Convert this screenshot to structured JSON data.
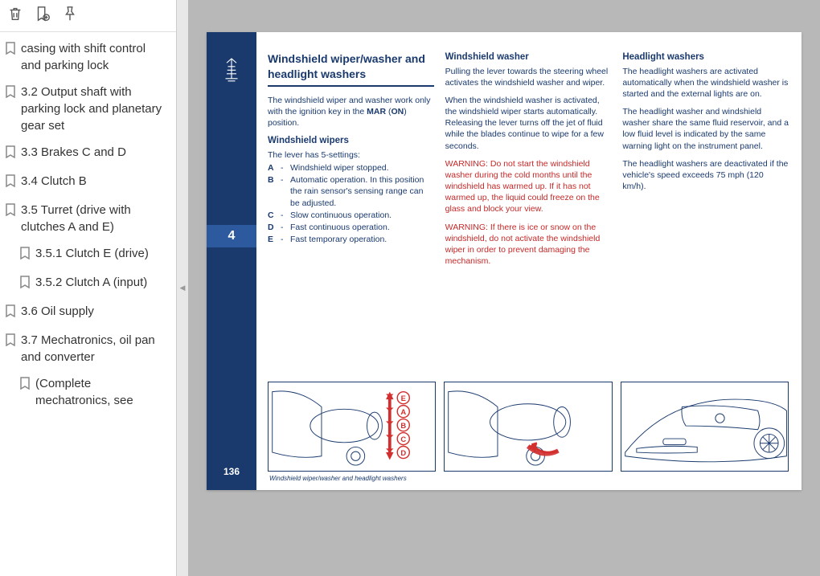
{
  "toolbar": {
    "icons": [
      "trash-icon",
      "bookmark-add-icon",
      "highlight-icon"
    ]
  },
  "outline": [
    {
      "label": "casing with shift control and parking lock",
      "nested": false
    },
    {
      "label": "3.2 Output shaft with parking lock and planetary gear set",
      "nested": false
    },
    {
      "label": "3.3 Brakes C and D",
      "nested": false
    },
    {
      "label": "3.4 Clutch B",
      "nested": false
    },
    {
      "label": "3.5 Turret (drive with clutches A and E)",
      "nested": false
    },
    {
      "label": "3.5.1 Clutch E (drive)",
      "nested": true
    },
    {
      "label": "3.5.2 Clutch A (input)",
      "nested": true
    },
    {
      "label": "3.6 Oil supply",
      "nested": false
    },
    {
      "label": "3.7 Mechatronics, oil pan and converter",
      "nested": false
    },
    {
      "label": "  (Complete mechatronics, see",
      "nested": true
    }
  ],
  "page": {
    "chapter": "4",
    "page_number": "136",
    "caption": "Windshield wiper/washer and headlight washers",
    "col1": {
      "title": "Windshield wiper/washer and headlight washers",
      "intro_a": "The windshield wiper and washer work only with the ignition key in the ",
      "intro_b": "MAR",
      "intro_c": " (",
      "intro_d": "ON",
      "intro_e": ") position.",
      "sub": "Windshield wipers",
      "lever_intro": "The lever has 5-settings:",
      "settings": [
        {
          "k": "A",
          "v": "Windshield wiper stopped."
        },
        {
          "k": "B",
          "v": "Automatic operation. In this position the rain sensor's sensing range can be adjusted."
        },
        {
          "k": "C",
          "v": "Slow continuous operation."
        },
        {
          "k": "D",
          "v": "Fast continuous operation."
        },
        {
          "k": "E",
          "v": "Fast temporary operation."
        }
      ]
    },
    "col2": {
      "title": "Windshield washer",
      "p1": "Pulling the lever towards the steering wheel activates the windshield washer and wiper.",
      "p2": "When the windshield washer is activated, the windshield wiper starts automatically. Releasing the lever turns off the jet of fluid while the blades continue to wipe for a few seconds.",
      "w1": "WARNING: Do not start the windshield washer during the cold months until the windshield has warmed up. If it has not warmed up, the liquid could freeze on the glass and block your view.",
      "w2": "WARNING: If there is ice or snow on the windshield, do not activate the windshield wiper in order to prevent damaging the mechanism."
    },
    "col3": {
      "title": "Headlight washers",
      "p1": "The headlight washers are activated automatically when the windshield washer is started and the external lights are on.",
      "p2": "The headlight washer and windshield washer share the same fluid reservoir, and a low fluid level is indicated by the same warning light on the instrument panel.",
      "p3": "The headlight washers are deactivated if the vehicle's speed exceeds 75 mph (120 km/h)."
    },
    "fig1_labels": [
      "E",
      "A",
      "B",
      "C",
      "D"
    ]
  },
  "colors": {
    "spine": "#1a3a6e",
    "tab": "#2d5a9e",
    "warn": "#c62828",
    "arrow": "#d32f2f"
  }
}
